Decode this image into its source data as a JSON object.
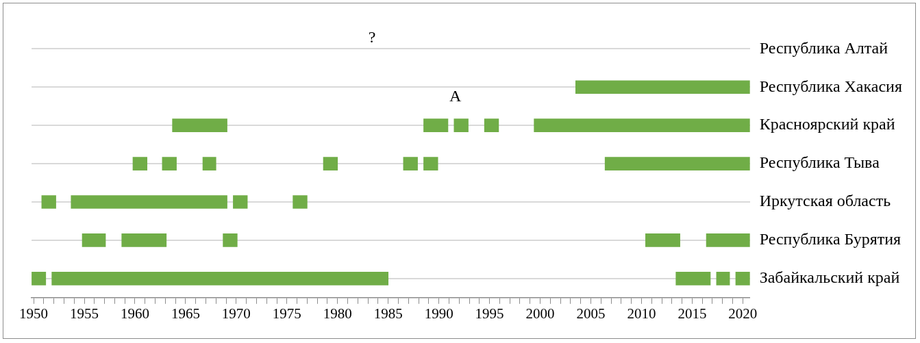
{
  "chart_data": {
    "type": "bar",
    "orientation": "horizontal",
    "categories": [
      "Республика Алтай",
      "Республика Хакасия",
      "Красноярский край",
      "Республика Тыва",
      "Иркутская область",
      "Республика Бурятия",
      "Забайкальский край"
    ],
    "series": [
      {
        "color": "#70ad47",
        "base": [
          null,
          2003.5,
          1963.7,
          1959.8,
          1950.8,
          1954.8,
          1949.8
        ],
        "values": [
          null,
          17.2,
          5.4,
          1.4,
          1.4,
          2.3,
          1.4
        ]
      },
      {
        "color": "#70ad47",
        "base": [
          null,
          null,
          1988.5,
          1962.7,
          1953.7,
          1958.7,
          1951.8
        ],
        "values": [
          null,
          null,
          2.4,
          1.4,
          15.4,
          4.4,
          33.2
        ]
      },
      {
        "color": "#70ad47",
        "base": [
          null,
          null,
          1991.5,
          1966.7,
          1969.7,
          1968.7,
          2013.4
        ],
        "values": [
          null,
          null,
          1.4,
          1.3,
          1.4,
          1.4,
          3.4
        ]
      },
      {
        "color": "#70ad47",
        "base": [
          null,
          null,
          1994.5,
          1978.6,
          1975.6,
          2010.4,
          2017.4
        ],
        "values": [
          null,
          null,
          1.4,
          1.4,
          1.4,
          3.4,
          1.3
        ]
      },
      {
        "color": "#70ad47",
        "base": [
          null,
          null,
          1999.4,
          1986.5,
          null,
          2016.4,
          2019.3
        ],
        "values": [
          null,
          null,
          21.3,
          1.4,
          null,
          4.3,
          1.4
        ]
      },
      {
        "color": "#70ad47",
        "base": [
          null,
          null,
          null,
          1988.5,
          null,
          null,
          null
        ],
        "values": [
          null,
          null,
          null,
          1.4,
          null,
          null,
          null
        ]
      },
      {
        "color": "#70ad47",
        "base": [
          null,
          null,
          null,
          2006.4,
          null,
          null,
          null
        ],
        "values": [
          null,
          null,
          null,
          14.3,
          null,
          null,
          null
        ]
      }
    ],
    "xlim": [
      1949.8,
      2020.7
    ],
    "xticks": [
      1950,
      {
        "value": 1951,
        "label": null
      },
      {
        "value": 1952,
        "label": null
      },
      {
        "value": 1953,
        "label": null
      },
      {
        "value": 1954,
        "label": null
      },
      1955,
      {
        "value": 1956,
        "label": null
      },
      {
        "value": 1957,
        "label": null
      },
      {
        "value": 1958,
        "label": null
      },
      {
        "value": 1959,
        "label": null
      },
      1960,
      {
        "value": 1961,
        "label": null
      },
      {
        "value": 1962,
        "label": null
      },
      {
        "value": 1963,
        "label": null
      },
      {
        "value": 1964,
        "label": null
      },
      1965,
      {
        "value": 1966,
        "label": null
      },
      {
        "value": 1967,
        "label": null
      },
      {
        "value": 1968,
        "label": null
      },
      {
        "value": 1969,
        "label": null
      },
      1970,
      {
        "value": 1971,
        "label": null
      },
      {
        "value": 1972,
        "label": null
      },
      {
        "value": 1973,
        "label": null
      },
      {
        "value": 1974,
        "label": null
      },
      1975,
      {
        "value": 1976,
        "label": null
      },
      {
        "value": 1977,
        "label": null
      },
      {
        "value": 1978,
        "label": null
      },
      {
        "value": 1979,
        "label": null
      },
      1980,
      {
        "value": 1981,
        "label": null
      },
      {
        "value": 1982,
        "label": null
      },
      {
        "value": 1983,
        "label": null
      },
      {
        "value": 1984,
        "label": null
      },
      1985,
      {
        "value": 1986,
        "label": null
      },
      {
        "value": 1987,
        "label": null
      },
      {
        "value": 1988,
        "label": null
      },
      {
        "value": 1989,
        "label": null
      },
      1990,
      {
        "value": 1991,
        "label": null
      },
      {
        "value": 1992,
        "label": null
      },
      {
        "value": 1993,
        "label": null
      },
      {
        "value": 1994,
        "label": null
      },
      1995,
      {
        "value": 1996,
        "label": null
      },
      {
        "value": 1997,
        "label": null
      },
      {
        "value": 1998,
        "label": null
      },
      {
        "value": 1999,
        "label": null
      },
      2000,
      {
        "value": 2001,
        "label": null
      },
      {
        "value": 2002,
        "label": null
      },
      {
        "value": 2003,
        "label": null
      },
      {
        "value": 2004,
        "label": null
      },
      2005,
      {
        "value": 2006,
        "label": null
      },
      {
        "value": 2007,
        "label": null
      },
      {
        "value": 2008,
        "label": null
      },
      {
        "value": 2009,
        "label": null
      },
      2010,
      {
        "value": 2011,
        "label": null
      },
      {
        "value": 2012,
        "label": null
      },
      {
        "value": 2013,
        "label": null
      },
      {
        "value": 2014,
        "label": null
      },
      2015,
      {
        "value": 2016,
        "label": null
      },
      {
        "value": 2017,
        "label": null
      },
      {
        "value": 2018,
        "label": null
      },
      {
        "value": 2019,
        "label": null
      },
      2020
    ],
    "grid": "y",
    "legend": false,
    "annotations": [
      "?",
      "А"
    ]
  }
}
